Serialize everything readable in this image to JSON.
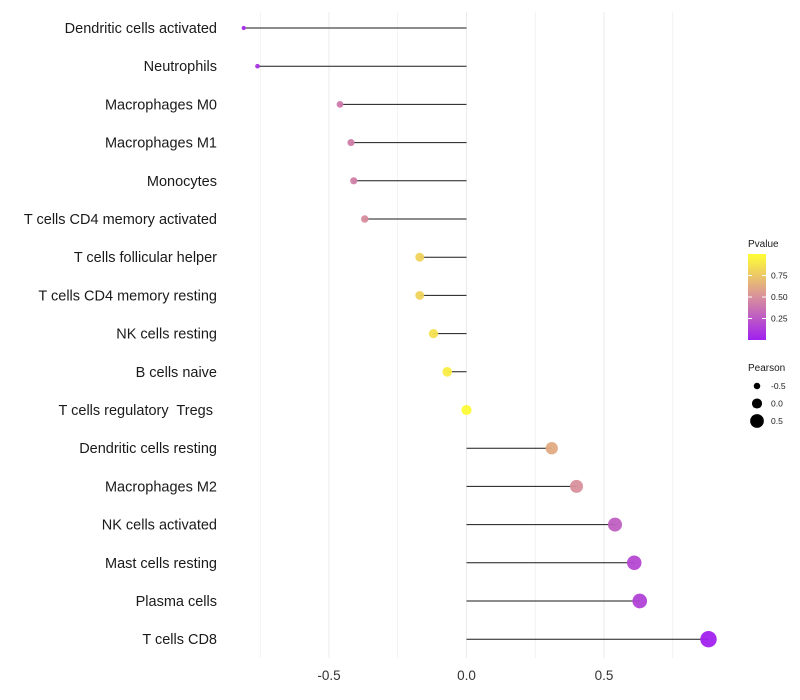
{
  "chart_data": {
    "type": "lollipop",
    "categories": [
      "Dendritic cells activated",
      "Neutrophils",
      "Macrophages M0",
      "Macrophages M1",
      "Monocytes",
      "T cells CD4 memory activated",
      "T cells follicular helper",
      "T cells CD4 memory resting",
      "NK cells resting",
      "B cells naive",
      "T cells regulatory  Tregs ",
      "Dendritic cells resting",
      "Macrophages M2",
      "NK cells activated",
      "Mast cells resting",
      "Plasma cells",
      "T cells CD8"
    ],
    "values": [
      -0.81,
      -0.76,
      -0.46,
      -0.42,
      -0.41,
      -0.37,
      -0.17,
      -0.17,
      -0.12,
      -0.07,
      0.0,
      0.31,
      0.4,
      0.54,
      0.61,
      0.63,
      0.88
    ],
    "pvalues": [
      0.05,
      0.08,
      0.4,
      0.42,
      0.43,
      0.48,
      0.8,
      0.8,
      0.86,
      0.92,
      0.98,
      0.62,
      0.5,
      0.28,
      0.18,
      0.15,
      0.01
    ],
    "xlabel": "",
    "ylabel": "",
    "xlim": [
      -0.87,
      0.95
    ],
    "x_ticks": [
      -0.5,
      0.0,
      0.5
    ],
    "x_tick_labels": [
      "-0.5",
      "0.0",
      "0.5"
    ],
    "legend": {
      "color": {
        "title": "Pvalue",
        "ticks": [
          0.75,
          0.5,
          0.25
        ],
        "tick_labels": [
          "0.75",
          "0.50",
          "0.25"
        ],
        "low_color": "#a020f0",
        "mid_color": "#d8909c",
        "high_color": "#ffff33",
        "range": [
          0.0,
          1.0
        ]
      },
      "size": {
        "title": "Pearson",
        "values": [
          -0.5,
          0.0,
          0.5
        ],
        "labels": [
          "-0.5",
          "0.0",
          "0.5"
        ]
      },
      "placement": "right"
    }
  }
}
